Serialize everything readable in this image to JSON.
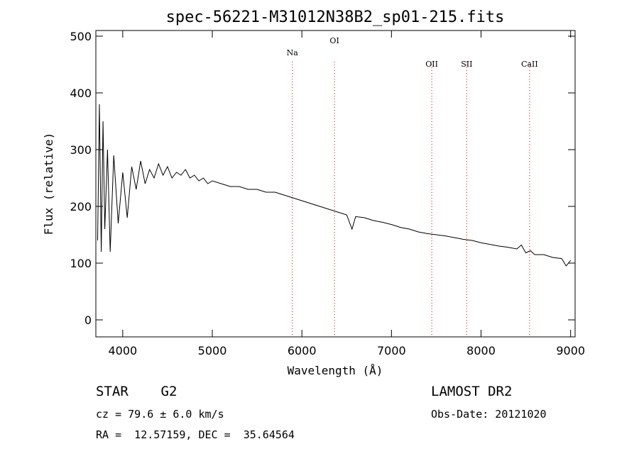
{
  "chart_data": {
    "type": "line",
    "title": "spec-56221-M31012N38B2_sp01-215.fits",
    "xlabel": "Wavelength (Å)",
    "ylabel": "Flux (relative)",
    "xlim": [
      3700,
      9050
    ],
    "ylim": [
      -30,
      510
    ],
    "xticks": [
      4000,
      5000,
      6000,
      7000,
      8000,
      9000
    ],
    "yticks": [
      0,
      100,
      200,
      300,
      400,
      500
    ],
    "series": [
      {
        "x": [
          3720,
          3740,
          3760,
          3780,
          3800,
          3830,
          3860,
          3900,
          3950,
          4000,
          4050,
          4100,
          4150,
          4200,
          4250,
          4300,
          4350,
          4400,
          4450,
          4500,
          4550,
          4600,
          4650,
          4700,
          4750,
          4800,
          4850,
          4900,
          4950,
          5000,
          5100,
          5200,
          5300,
          5400,
          5500,
          5600,
          5700,
          5800,
          5900,
          6000,
          6100,
          6200,
          6300,
          6400,
          6500,
          6560,
          6600,
          6700,
          6800,
          6900,
          7000,
          7100,
          7200,
          7300,
          7400,
          7500,
          7600,
          7700,
          7800,
          7900,
          8000,
          8100,
          8200,
          8300,
          8400,
          8450,
          8500,
          8550,
          8600,
          8700,
          8800,
          8900,
          8950,
          9000
        ],
        "y": [
          140,
          380,
          120,
          350,
          160,
          300,
          120,
          290,
          170,
          260,
          180,
          270,
          230,
          280,
          240,
          265,
          250,
          275,
          255,
          270,
          250,
          260,
          255,
          265,
          250,
          255,
          245,
          250,
          240,
          245,
          240,
          235,
          235,
          230,
          230,
          225,
          225,
          220,
          215,
          210,
          205,
          200,
          195,
          190,
          185,
          160,
          182,
          180,
          175,
          172,
          168,
          163,
          160,
          155,
          152,
          150,
          148,
          145,
          142,
          140,
          136,
          133,
          130,
          128,
          125,
          132,
          118,
          122,
          115,
          115,
          110,
          108,
          95,
          105
        ]
      }
    ],
    "lines": [
      {
        "label": "Na",
        "x": 5893
      },
      {
        "label": "OI",
        "x": 6364
      },
      {
        "label": "OII",
        "x": 7450
      },
      {
        "label": "SII",
        "x": 7840
      },
      {
        "label": "CaII",
        "x": 8542
      }
    ]
  },
  "footer": {
    "object": "STAR    G2",
    "cz": "cz = 79.6 ± 6.0 km/s",
    "radec": "RA =  12.57159, DEC =  35.64564",
    "survey": "LAMOST DR2",
    "obsdate": "Obs-Date: 20121020"
  }
}
